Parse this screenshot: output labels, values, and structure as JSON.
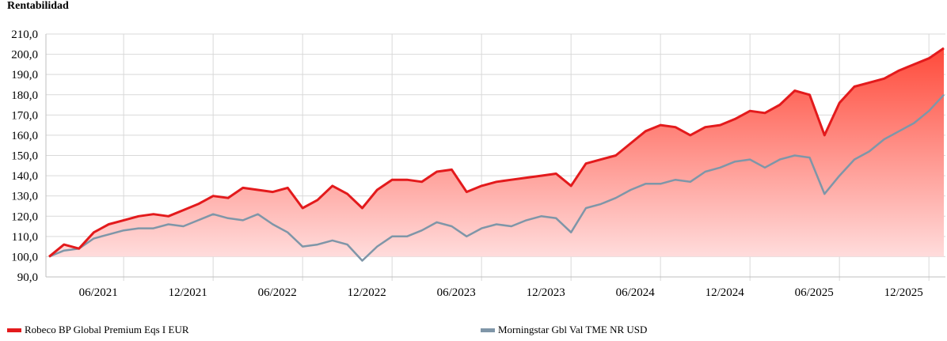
{
  "chart_data": {
    "type": "area",
    "title": "Rentabilidad",
    "ylim": [
      90,
      210
    ],
    "yticks": [
      "90,0",
      "100,0",
      "110,0",
      "120,0",
      "130,0",
      "140,0",
      "150,0",
      "160,0",
      "170,0",
      "180,0",
      "190,0",
      "200,0",
      "210,0"
    ],
    "xticks": [
      "06/2021",
      "12/2021",
      "06/2022",
      "12/2022",
      "06/2023",
      "12/2023",
      "06/2024",
      "12/2024",
      "06/2025",
      "12/2025"
    ],
    "x": [
      "01/2021",
      "02/2021",
      "03/2021",
      "04/2021",
      "05/2021",
      "06/2021",
      "07/2021",
      "08/2021",
      "09/2021",
      "10/2021",
      "11/2021",
      "12/2021",
      "01/2022",
      "02/2022",
      "03/2022",
      "04/2022",
      "05/2022",
      "06/2022",
      "07/2022",
      "08/2022",
      "09/2022",
      "10/2022",
      "11/2022",
      "12/2022",
      "01/2023",
      "02/2023",
      "03/2023",
      "04/2023",
      "05/2023",
      "06/2023",
      "07/2023",
      "08/2023",
      "09/2023",
      "10/2023",
      "11/2023",
      "12/2023",
      "01/2024",
      "02/2024",
      "03/2024",
      "04/2024",
      "05/2024",
      "06/2024",
      "07/2024",
      "08/2024",
      "09/2024",
      "10/2024",
      "11/2024",
      "12/2024",
      "01/2025",
      "02/2025",
      "03/2025",
      "04/2025",
      "05/2025",
      "06/2025",
      "07/2025",
      "08/2025",
      "09/2025",
      "10/2025",
      "11/2025",
      "12/2025",
      "01/2026"
    ],
    "grid": true,
    "legend_position": "bottom",
    "series": [
      {
        "name": "Robeco BP Global Premium Eqs I EUR",
        "color": "#e31a1c",
        "values": [
          100,
          106,
          104,
          112,
          116,
          118,
          120,
          121,
          120,
          123,
          126,
          130,
          129,
          134,
          133,
          132,
          134,
          124,
          128,
          135,
          131,
          124,
          133,
          138,
          138,
          137,
          142,
          143,
          132,
          135,
          137,
          138,
          139,
          140,
          141,
          135,
          146,
          148,
          150,
          156,
          162,
          165,
          164,
          160,
          164,
          165,
          168,
          172,
          171,
          175,
          182,
          180,
          160,
          176,
          184,
          186,
          188,
          192,
          195,
          198,
          203
        ]
      },
      {
        "name": "Morningstar Gbl Val TME NR USD",
        "color": "#7f96a8",
        "values": [
          100,
          103,
          104,
          109,
          111,
          113,
          114,
          114,
          116,
          115,
          118,
          121,
          119,
          118,
          121,
          116,
          112,
          105,
          106,
          108,
          106,
          98,
          105,
          110,
          110,
          113,
          117,
          115,
          110,
          114,
          116,
          115,
          118,
          120,
          119,
          112,
          124,
          126,
          129,
          133,
          136,
          136,
          138,
          137,
          142,
          144,
          147,
          148,
          144,
          148,
          150,
          149,
          131,
          140,
          148,
          152,
          158,
          162,
          166,
          172,
          180
        ]
      }
    ]
  },
  "title_color": "#000000",
  "fill_gradient": [
    "#ff4a3a",
    "#ffdcdc"
  ]
}
